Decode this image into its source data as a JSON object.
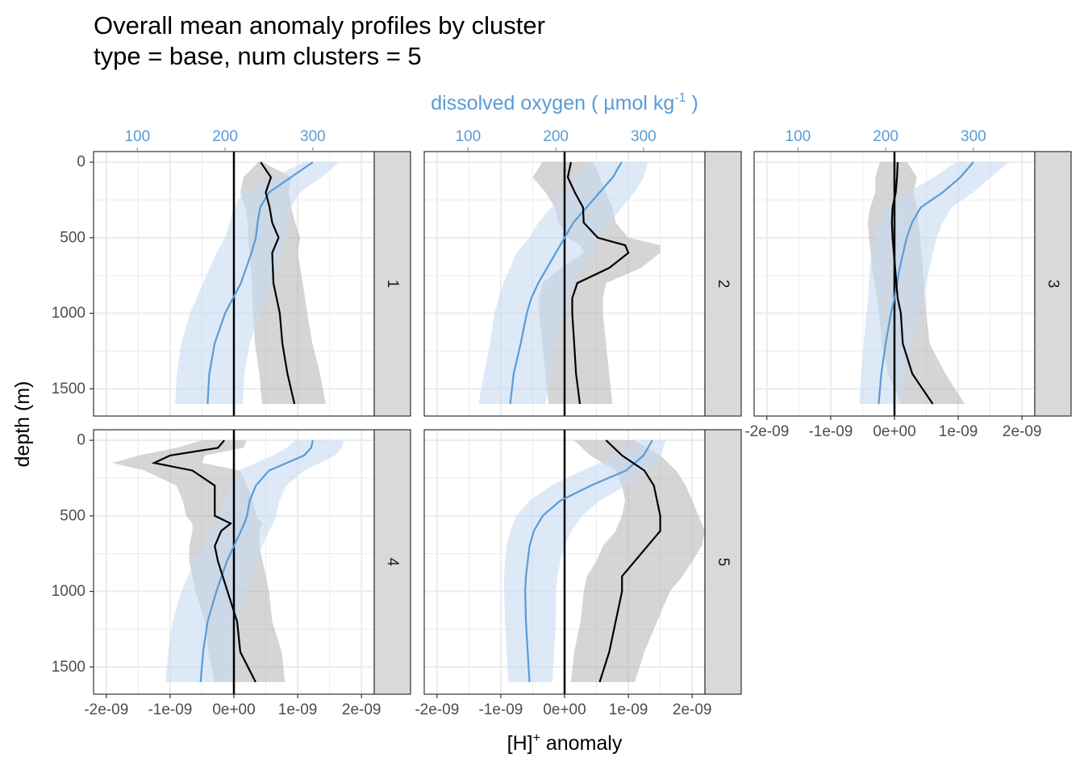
{
  "title_line1": "Overall mean anomaly profiles by cluster",
  "title_line2": "type = base, num clusters = 5",
  "x_axis_title": "[H]",
  "x_axis_title_sup": "+",
  "x_axis_title_suffix": " anomaly",
  "y_axis_title": "depth (m)",
  "secondary_axis_title": "dissolved oxygen ( µmol kg",
  "secondary_axis_title_sup": "-1",
  "secondary_axis_title_suffix": " )",
  "colors": {
    "hplus_line": "#000000",
    "hplus_ribbon": "#b3b3b3",
    "oxygen_line": "#5a9bd4",
    "oxygen_ribbon": "#c6dbf2",
    "strip_fill": "#d9d9d9",
    "grid": "#ebebeb"
  },
  "chart_data": {
    "type": "line",
    "x_ticks": [
      -2e-09,
      -1e-09,
      0,
      1e-09,
      2e-09
    ],
    "x_tick_labels": [
      "-2e-09",
      "-1e-09",
      "0e+00",
      "1e-09",
      "2e-09"
    ],
    "xlim": [
      -2.2e-09,
      2.2e-09
    ],
    "y_ticks": [
      0,
      500,
      1000,
      1500
    ],
    "y_tick_labels": [
      "0",
      "500",
      "1000",
      "1500"
    ],
    "ylim": [
      1680,
      -70
    ],
    "y_reversed": true,
    "secondary_x_ticks": [
      100,
      200,
      300
    ],
    "secondary_x_tick_labels": [
      "100",
      "200",
      "300"
    ],
    "secondary_xlim": [
      50,
      370
    ],
    "vertical_reference_x": 0,
    "grid": true,
    "panels": [
      {
        "label": "1",
        "depth": [
          0,
          100,
          200,
          300,
          400,
          500,
          600,
          800,
          1000,
          1200,
          1400,
          1600
        ],
        "hplus_mean": [
          4.2e-10,
          5.8e-10,
          5e-10,
          5.6e-10,
          6e-10,
          7e-10,
          6e-10,
          6.2e-10,
          7.2e-10,
          7.6e-10,
          8.4e-10,
          9.5e-10
        ],
        "hplus_lower": [
          3.8e-10,
          1.5e-10,
          1e-10,
          1.8e-10,
          2.2e-10,
          2.2e-10,
          2.5e-10,
          2.8e-10,
          3e-10,
          3.3e-10,
          4e-10,
          4.4e-10
        ],
        "hplus_upper": [
          4.5e-10,
          9e-10,
          8.6e-10,
          9e-10,
          9.6e-10,
          1.04e-09,
          1e-09,
          1.08e-09,
          1.15e-09,
          1.23e-09,
          1.35e-09,
          1.44e-09
        ],
        "oxygen_mean": [
          300,
          275,
          250,
          240,
          237,
          235,
          230,
          218,
          200,
          188,
          182,
          180
        ],
        "oxygen_lower": [
          290,
          255,
          220,
          210,
          205,
          200,
          190,
          175,
          160,
          150,
          145,
          143
        ],
        "oxygen_upper": [
          330,
          310,
          285,
          275,
          272,
          270,
          265,
          255,
          240,
          228,
          222,
          220
        ]
      },
      {
        "label": "2",
        "depth": [
          0,
          100,
          200,
          300,
          400,
          500,
          550,
          600,
          700,
          800,
          900,
          1000,
          1200,
          1400,
          1600
        ],
        "hplus_mean": [
          1e-10,
          5e-11,
          1.6e-10,
          2.9e-10,
          3e-10,
          5.2e-10,
          9.5e-10,
          1e-09,
          7e-10,
          2e-10,
          1.2e-10,
          1.2e-10,
          1.5e-10,
          1.8e-10,
          2.4e-10
        ],
        "hplus_lower": [
          -3.5e-10,
          -5e-10,
          -3e-10,
          -1.5e-10,
          -1e-10,
          5e-11,
          2.5e-10,
          3e-10,
          -5e-11,
          -3.5e-10,
          -4e-10,
          -4e-10,
          -3.5e-10,
          -3e-10,
          -2.5e-10
        ],
        "hplus_upper": [
          4.5e-10,
          5.5e-10,
          6.5e-10,
          7.5e-10,
          8e-10,
          1e-09,
          1.5e-09,
          1.5e-09,
          1.2e-09,
          6.5e-10,
          6e-10,
          6e-10,
          6.5e-10,
          7e-10,
          7.5e-10
        ],
        "oxygen_mean": [
          275,
          265,
          250,
          235,
          220,
          210,
          205,
          200,
          190,
          180,
          172,
          167,
          160,
          152,
          148
        ],
        "oxygen_lower": [
          240,
          225,
          210,
          195,
          180,
          170,
          162,
          155,
          148,
          140,
          135,
          130,
          125,
          118,
          112
        ],
        "oxygen_upper": [
          305,
          300,
          290,
          275,
          262,
          250,
          245,
          240,
          232,
          222,
          215,
          208,
          200,
          195,
          188
        ]
      },
      {
        "label": "3",
        "depth": [
          0,
          100,
          200,
          300,
          400,
          500,
          700,
          900,
          1000,
          1200,
          1400,
          1600
        ],
        "hplus_mean": [
          5e-11,
          4e-11,
          2e-11,
          -3e-11,
          -4e-11,
          -3e-11,
          1e-11,
          5e-11,
          1e-10,
          1.3e-10,
          2.8e-10,
          6e-10
        ],
        "hplus_lower": [
          -2.3e-10,
          -3e-10,
          -3e-10,
          -3.8e-10,
          -4.2e-10,
          -4e-10,
          -3.5e-10,
          -2.8e-10,
          -2.4e-10,
          -2e-10,
          -1e-10,
          1e-10
        ],
        "hplus_upper": [
          2e-10,
          3.5e-10,
          3e-10,
          3.5e-10,
          3.8e-10,
          4e-10,
          4.5e-10,
          4.8e-10,
          5e-10,
          5.5e-10,
          8e-10,
          1.1e-09
        ],
        "oxygen_mean": [
          300,
          285,
          265,
          240,
          230,
          224,
          216,
          210,
          206,
          200,
          195,
          192
        ],
        "oxygen_lower": [
          280,
          255,
          225,
          200,
          192,
          188,
          182,
          180,
          178,
          175,
          172,
          170
        ],
        "oxygen_upper": [
          340,
          320,
          300,
          275,
          265,
          258,
          250,
          243,
          238,
          230,
          222,
          218
        ]
      },
      {
        "label": "4",
        "depth": [
          0,
          50,
          100,
          150,
          200,
          300,
          400,
          500,
          550,
          600,
          700,
          800,
          1000,
          1200,
          1400,
          1600
        ],
        "hplus_mean": [
          -1.5e-10,
          -2.5e-10,
          -1e-09,
          -1.25e-09,
          -6.5e-10,
          -3e-10,
          -3e-10,
          -3e-10,
          -5e-11,
          -2e-10,
          -3e-10,
          -2.5e-10,
          -1e-10,
          5e-11,
          1e-10,
          3.4e-10
        ],
        "hplus_lower": [
          -5e-10,
          -9e-10,
          -1.5e-09,
          -1.9e-09,
          -1.4e-09,
          -9e-10,
          -8e-10,
          -7.5e-10,
          -6.5e-10,
          -6.5e-10,
          -7e-10,
          -7e-10,
          -6e-10,
          -4.5e-10,
          -4e-10,
          -3e-10
        ],
        "hplus_upper": [
          2e-10,
          1.5e-10,
          -4.5e-10,
          -5e-10,
          1e-10,
          2e-10,
          3e-10,
          3.5e-10,
          4.5e-10,
          4e-10,
          4e-10,
          4.5e-10,
          5.5e-10,
          6e-10,
          7.5e-10,
          8e-10
        ],
        "oxygen_mean": [
          300,
          298,
          290,
          270,
          250,
          235,
          228,
          225,
          222,
          218,
          210,
          202,
          190,
          180,
          175,
          172
        ],
        "oxygen_lower": [
          280,
          270,
          255,
          235,
          215,
          205,
          198,
          195,
          190,
          185,
          175,
          165,
          150,
          140,
          135,
          132
        ],
        "oxygen_upper": [
          335,
          333,
          325,
          308,
          290,
          270,
          262,
          258,
          255,
          250,
          242,
          235,
          225,
          215,
          210,
          208
        ]
      },
      {
        "label": "5",
        "depth": [
          0,
          100,
          200,
          300,
          400,
          500,
          600,
          700,
          800,
          900,
          1000,
          1200,
          1400,
          1600
        ],
        "hplus_mean": [
          6.5e-10,
          9e-10,
          1.25e-09,
          1.4e-09,
          1.45e-09,
          1.5e-09,
          1.5e-09,
          1.3e-09,
          1.1e-09,
          9e-10,
          9e-10,
          8e-10,
          7e-10,
          5.5e-10
        ],
        "hplus_lower": [
          1.5e-10,
          4e-10,
          8e-10,
          9e-10,
          9.5e-10,
          9e-10,
          8e-10,
          6e-10,
          5e-10,
          3.5e-10,
          3e-10,
          2.5e-10,
          1.5e-10,
          1e-10
        ],
        "hplus_upper": [
          1.1e-09,
          1.5e-09,
          1.75e-09,
          1.9e-09,
          2e-09,
          2.1e-09,
          2.2e-09,
          2.15e-09,
          2e-09,
          1.85e-09,
          1.65e-09,
          1.45e-09,
          1.25e-09,
          1.1e-09
        ],
        "oxygen_mean": [
          310,
          300,
          280,
          240,
          205,
          185,
          175,
          170,
          168,
          166,
          165,
          166,
          168,
          170
        ],
        "oxygen_lower": [
          295,
          270,
          230,
          195,
          170,
          155,
          148,
          144,
          142,
          141,
          141,
          142,
          144,
          146
        ],
        "oxygen_upper": [
          325,
          320,
          305,
          280,
          250,
          230,
          218,
          210,
          205,
          202,
          200,
          200,
          198,
          196
        ]
      }
    ]
  }
}
